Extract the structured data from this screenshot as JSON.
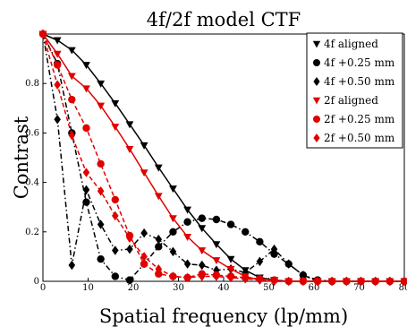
{
  "chart_data": {
    "type": "line",
    "title": "4f/2f model CTF",
    "xlabel": "Spatial frequency (lp/mm)",
    "ylabel": "Contrast",
    "xlim": [
      0,
      80
    ],
    "ylim": [
      0,
      1
    ],
    "x_ticks": [
      "0",
      "10",
      "20",
      "30",
      "40",
      "50",
      "60",
      "70",
      "80"
    ],
    "x_tick_values": [
      0,
      10,
      20,
      30,
      40,
      50,
      60,
      70,
      80
    ],
    "y_ticks": [
      "0",
      "0.2",
      "0.4",
      "0.6",
      "0.8"
    ],
    "y_tick_values": [
      0,
      0.2,
      0.4,
      0.6,
      0.8
    ],
    "grid": false,
    "legend_position": "top-right",
    "series": [
      {
        "name": "4f aligned",
        "color": "#000000",
        "marker": "triangle-down",
        "line": "solid",
        "x": [
          0,
          3.2,
          6.4,
          9.6,
          12.8,
          16,
          19.2,
          22.4,
          25.6,
          28.8,
          32,
          35.2,
          38.4,
          41.6,
          44.8,
          48,
          51.2,
          54.4,
          57.6,
          60.8,
          64,
          67.2,
          70.4,
          73.6,
          76.8,
          80
        ],
        "y": [
          1.0,
          0.975,
          0.935,
          0.875,
          0.8,
          0.72,
          0.635,
          0.55,
          0.46,
          0.375,
          0.29,
          0.215,
          0.15,
          0.09,
          0.045,
          0.015,
          0.005,
          0,
          0,
          0,
          0,
          0,
          0,
          0,
          0,
          0
        ]
      },
      {
        "name": "4f +0.25 mm",
        "color": "#000000",
        "marker": "circle",
        "line": "dashdot",
        "x": [
          0,
          3.2,
          6.4,
          9.6,
          12.8,
          16,
          19.2,
          22.4,
          25.6,
          28.8,
          32,
          35.2,
          38.4,
          41.6,
          44.8,
          48,
          51.2,
          54.4,
          57.6,
          60.8,
          64,
          67.2,
          70.4,
          73.6,
          76.8,
          80
        ],
        "y": [
          1.0,
          0.88,
          0.6,
          0.32,
          0.09,
          0.02,
          0.005,
          0.07,
          0.14,
          0.2,
          0.24,
          0.255,
          0.25,
          0.23,
          0.2,
          0.16,
          0.11,
          0.07,
          0.025,
          0.005,
          0,
          0,
          0,
          0,
          0,
          0
        ]
      },
      {
        "name": "4f +0.50 mm",
        "color": "#000000",
        "marker": "diamond",
        "line": "dashdot",
        "x": [
          0,
          3.2,
          6.4,
          9.6,
          12.8,
          16,
          19.2,
          22.4,
          25.6,
          28.8,
          32,
          35.2,
          38.4,
          41.6,
          44.8,
          48,
          51.2,
          54.4,
          57.6,
          60.8,
          64,
          67.2,
          70.4,
          73.6,
          76.8,
          80
        ],
        "y": [
          1.0,
          0.655,
          0.065,
          0.37,
          0.23,
          0.125,
          0.13,
          0.195,
          0.17,
          0.12,
          0.07,
          0.065,
          0.045,
          0.05,
          0.035,
          0.08,
          0.13,
          0.07,
          0.025,
          0,
          0,
          0,
          0,
          0,
          0,
          0
        ]
      },
      {
        "name": "2f aligned",
        "color": "#e00000",
        "marker": "triangle-down",
        "line": "solid",
        "x": [
          0,
          3.2,
          6.4,
          9.6,
          12.8,
          16,
          19.2,
          22.4,
          25.6,
          28.8,
          32,
          35.2,
          38.4,
          41.6,
          44.8,
          48,
          51.2,
          54.4,
          57.6,
          60.8,
          64,
          67.2,
          70.4,
          73.6,
          76.8,
          80
        ],
        "y": [
          1.0,
          0.92,
          0.83,
          0.78,
          0.71,
          0.625,
          0.535,
          0.44,
          0.345,
          0.255,
          0.18,
          0.125,
          0.085,
          0.05,
          0.02,
          0.005,
          0,
          0,
          0,
          0,
          0,
          0,
          0,
          0,
          0,
          0
        ]
      },
      {
        "name": "2f +0.25 mm",
        "color": "#e00000",
        "marker": "circle",
        "line": "dashed",
        "x": [
          0,
          3.2,
          6.4,
          9.6,
          12.8,
          16,
          19.2,
          22.4,
          25.6,
          28.8,
          32,
          35.2,
          38.4,
          41.6,
          44.8,
          48,
          51.2,
          54.4,
          57.6,
          60.8,
          64,
          67.2,
          70.4,
          73.6,
          76.8,
          80
        ],
        "y": [
          1.0,
          0.875,
          0.735,
          0.62,
          0.475,
          0.33,
          0.185,
          0.07,
          0.03,
          0.02,
          0.015,
          0.03,
          0.025,
          0.02,
          0.015,
          0.01,
          0.005,
          0,
          0,
          0,
          0,
          0,
          0,
          0,
          0,
          0
        ]
      },
      {
        "name": "2f +0.50 mm",
        "color": "#e00000",
        "marker": "diamond",
        "line": "dashed",
        "x": [
          0,
          3.2,
          6.4,
          9.6,
          12.8,
          16,
          19.2,
          22.4,
          25.6,
          28.8,
          32,
          35.2,
          38.4,
          41.6,
          44.8,
          48,
          51.2,
          54.4,
          57.6,
          60.8,
          64,
          67.2,
          70.4,
          73.6,
          76.8,
          80
        ],
        "y": [
          1.0,
          0.795,
          0.59,
          0.44,
          0.365,
          0.265,
          0.175,
          0.1,
          0.05,
          0.02,
          0.015,
          0.02,
          0.02,
          0.015,
          0.01,
          0.005,
          0,
          0,
          0,
          0,
          0,
          0,
          0,
          0,
          0,
          0
        ]
      }
    ]
  }
}
